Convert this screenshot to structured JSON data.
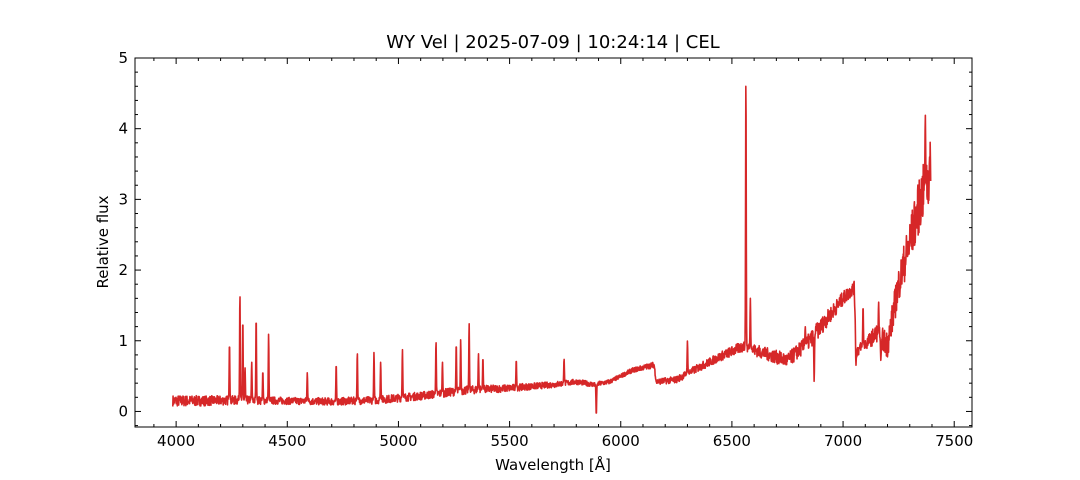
{
  "chart_data": {
    "type": "line",
    "title": "WY Vel | 2025-07-09 | 10:24:14 | CEL",
    "xlabel": "Wavelength [Å]",
    "ylabel": "Relative flux",
    "xlim": [
      3815,
      7580
    ],
    "ylim": [
      -0.22,
      5.0
    ],
    "xticks": [
      4000,
      4500,
      5000,
      5500,
      6000,
      6500,
      7000,
      7500
    ],
    "yticks": [
      0,
      1,
      2,
      3,
      4,
      5
    ],
    "grid": false,
    "legend": "none",
    "series": [
      {
        "color": "#d62728",
        "continuum": [
          [
            3985,
            0.15
          ],
          [
            4100,
            0.15
          ],
          [
            4300,
            0.16
          ],
          [
            4500,
            0.15
          ],
          [
            4700,
            0.14
          ],
          [
            4900,
            0.16
          ],
          [
            5100,
            0.22
          ],
          [
            5300,
            0.3
          ],
          [
            5500,
            0.33
          ],
          [
            5700,
            0.38
          ],
          [
            5800,
            0.42
          ],
          [
            5880,
            0.38
          ],
          [
            5950,
            0.42
          ],
          [
            6050,
            0.58
          ],
          [
            6150,
            0.66
          ],
          [
            6160,
            0.42
          ],
          [
            6250,
            0.45
          ],
          [
            6350,
            0.62
          ],
          [
            6450,
            0.78
          ],
          [
            6550,
            0.92
          ],
          [
            6650,
            0.82
          ],
          [
            6750,
            0.72
          ],
          [
            6850,
            1.0
          ],
          [
            6950,
            1.4
          ],
          [
            7000,
            1.6
          ],
          [
            7050,
            1.75
          ],
          [
            7060,
            0.85
          ],
          [
            7100,
            0.95
          ],
          [
            7150,
            1.1
          ],
          [
            7200,
            0.95
          ],
          [
            7250,
            1.8
          ],
          [
            7300,
            2.4
          ],
          [
            7350,
            3.0
          ],
          [
            7395,
            3.4
          ]
        ],
        "noise": [
          [
            3985,
            0.08
          ],
          [
            4500,
            0.05
          ],
          [
            5300,
            0.06
          ],
          [
            6000,
            0.03
          ],
          [
            6400,
            0.06
          ],
          [
            6900,
            0.12
          ],
          [
            7100,
            0.08
          ],
          [
            7250,
            0.25
          ],
          [
            7395,
            0.45
          ]
        ],
        "spikes": [
          [
            4240,
            0.98
          ],
          [
            4287,
            1.68
          ],
          [
            4300,
            1.32
          ],
          [
            4310,
            0.62
          ],
          [
            4340,
            0.7
          ],
          [
            4360,
            1.35
          ],
          [
            4390,
            0.58
          ],
          [
            4416,
            1.1
          ],
          [
            4590,
            0.55
          ],
          [
            4720,
            0.68
          ],
          [
            4815,
            0.84
          ],
          [
            4890,
            0.84
          ],
          [
            4920,
            0.7
          ],
          [
            5018,
            0.88
          ],
          [
            5169,
            1.0
          ],
          [
            5198,
            0.7
          ],
          [
            5260,
            0.97
          ],
          [
            5280,
            1.02
          ],
          [
            5318,
            1.25
          ],
          [
            5360,
            0.82
          ],
          [
            5380,
            0.77
          ],
          [
            5530,
            0.74
          ],
          [
            5745,
            0.75
          ],
          [
            6300,
            1.0
          ],
          [
            6563,
            4.75
          ],
          [
            6583,
            1.6
          ],
          [
            6830,
            1.2
          ],
          [
            6880,
            1.25
          ],
          [
            7090,
            1.5
          ],
          [
            7160,
            1.55
          ],
          [
            7370,
            4.2
          ]
        ],
        "dips": [
          [
            5890,
            -0.06
          ],
          [
            6870,
            0.42
          ],
          [
            7058,
            0.65
          ],
          [
            7170,
            0.72
          ]
        ]
      }
    ]
  }
}
